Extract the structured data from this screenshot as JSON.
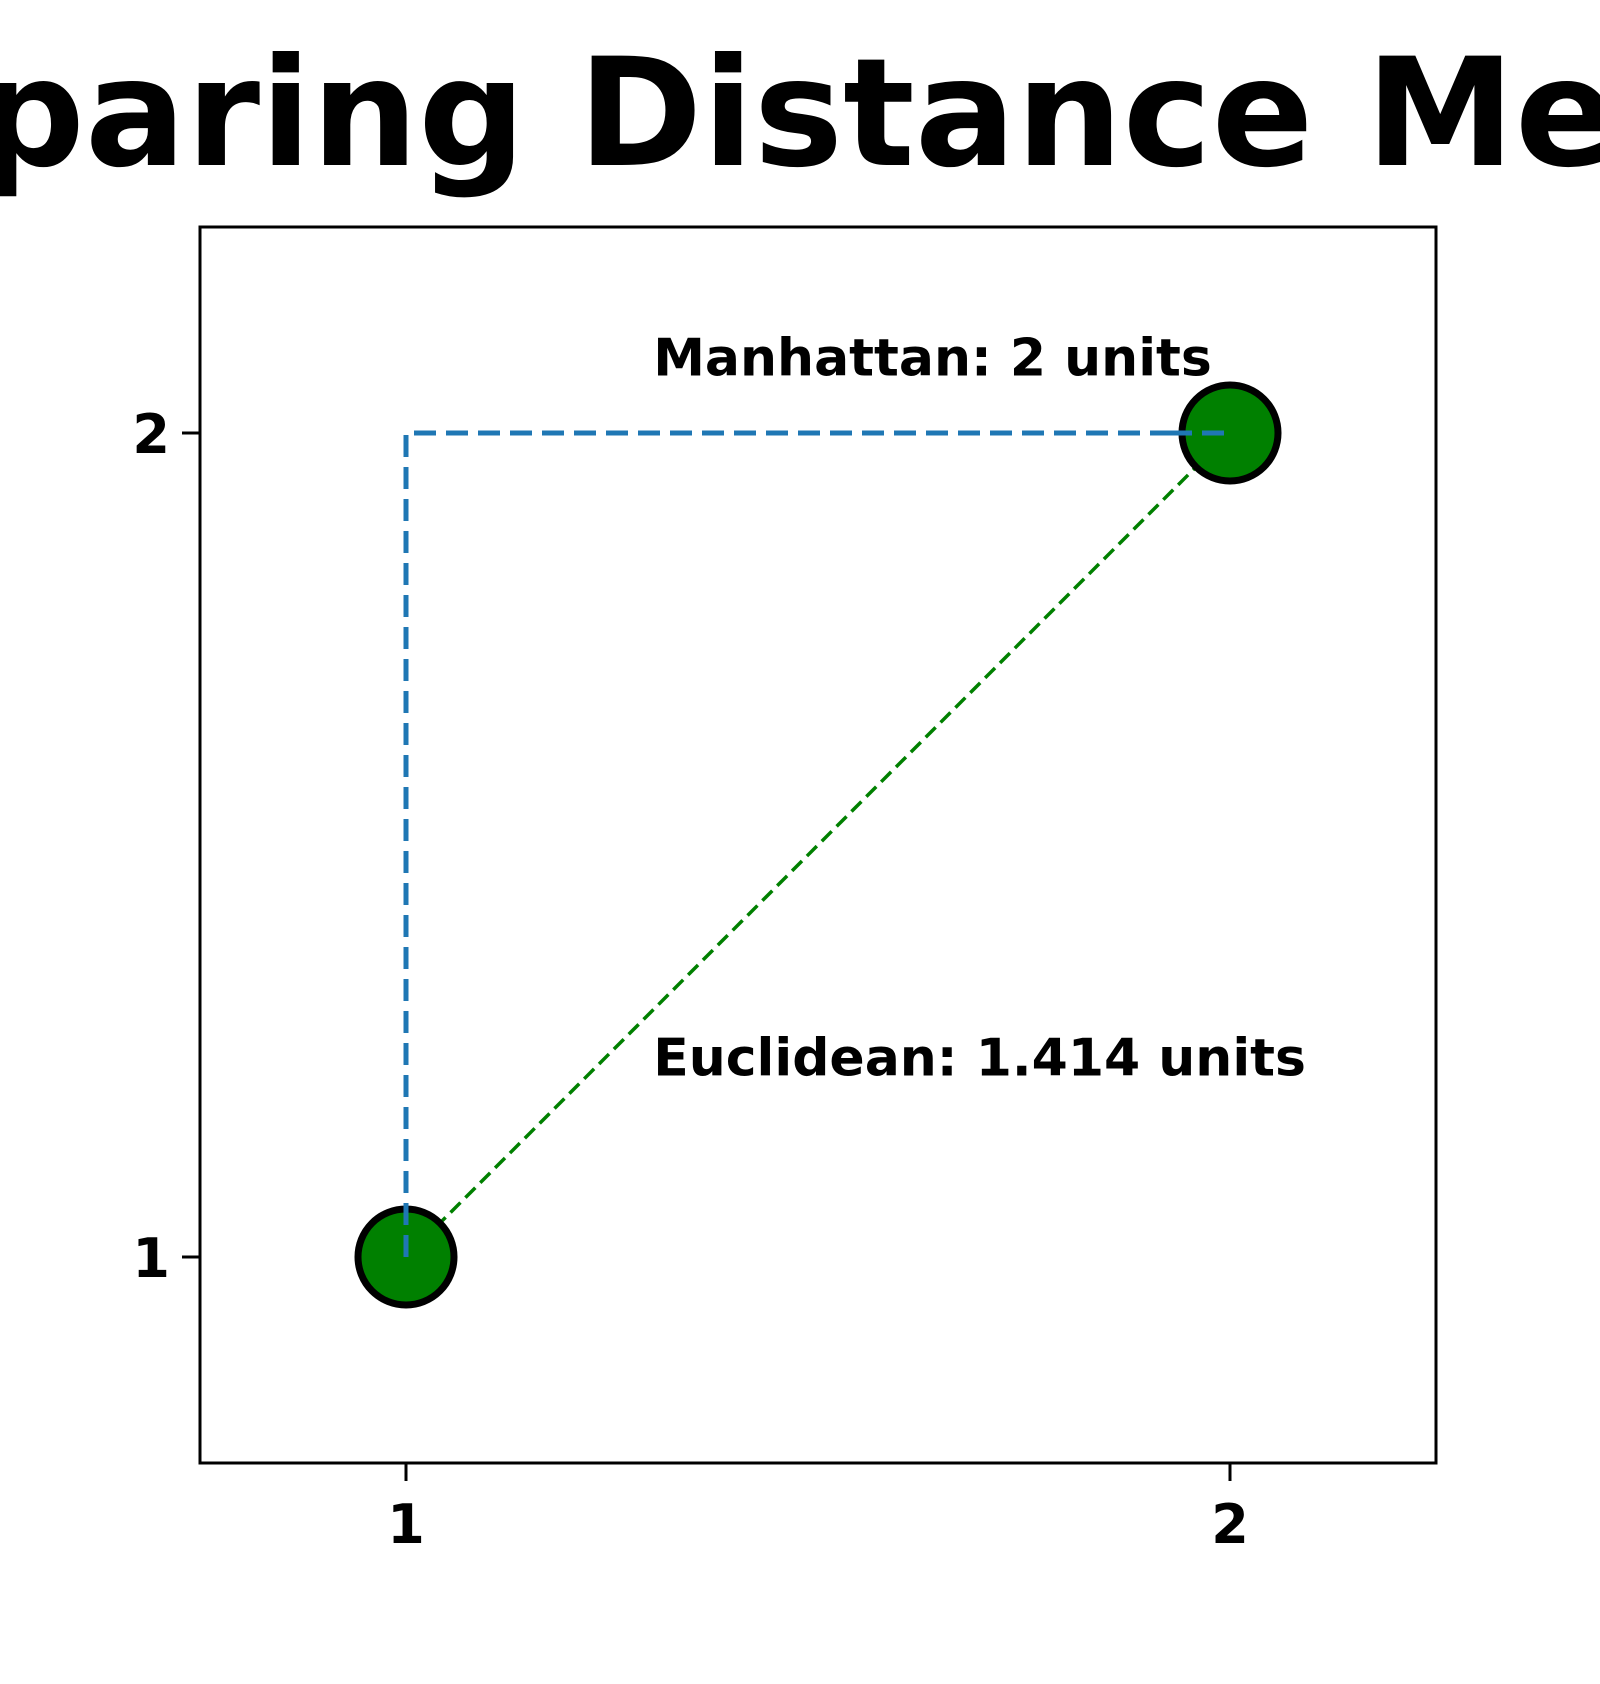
{
  "chart_data": {
    "type": "scatter",
    "title": "Comparing Distance Metrics",
    "xlabel": "",
    "ylabel": "",
    "xlim": [
      0.75,
      2.25
    ],
    "ylim": [
      0.75,
      2.25
    ],
    "x_ticks": [
      1,
      2
    ],
    "y_ticks": [
      1,
      2
    ],
    "x_tick_labels": [
      "1",
      "2"
    ],
    "y_tick_labels": [
      "1",
      "2"
    ],
    "grid": false,
    "points": [
      {
        "x": 1,
        "y": 1,
        "color": "#008000",
        "edge_color": "#000000"
      },
      {
        "x": 2,
        "y": 2,
        "color": "#008000",
        "edge_color": "#000000"
      }
    ],
    "paths": [
      {
        "points": [
          [
            1,
            1
          ],
          [
            1,
            2
          ],
          [
            2,
            2
          ]
        ],
        "style": "dashed",
        "color": "#1f77b4"
      },
      {
        "points": [
          [
            1,
            1
          ],
          [
            2,
            2
          ]
        ],
        "style": "dashed",
        "color": "#008000"
      }
    ],
    "annotations": [
      {
        "text": "Manhattan: 2 units",
        "x": 1.3,
        "y": 2.07
      },
      {
        "text": "Euclidean: 1.414 units",
        "x": 1.3,
        "y": 1.22
      }
    ]
  }
}
